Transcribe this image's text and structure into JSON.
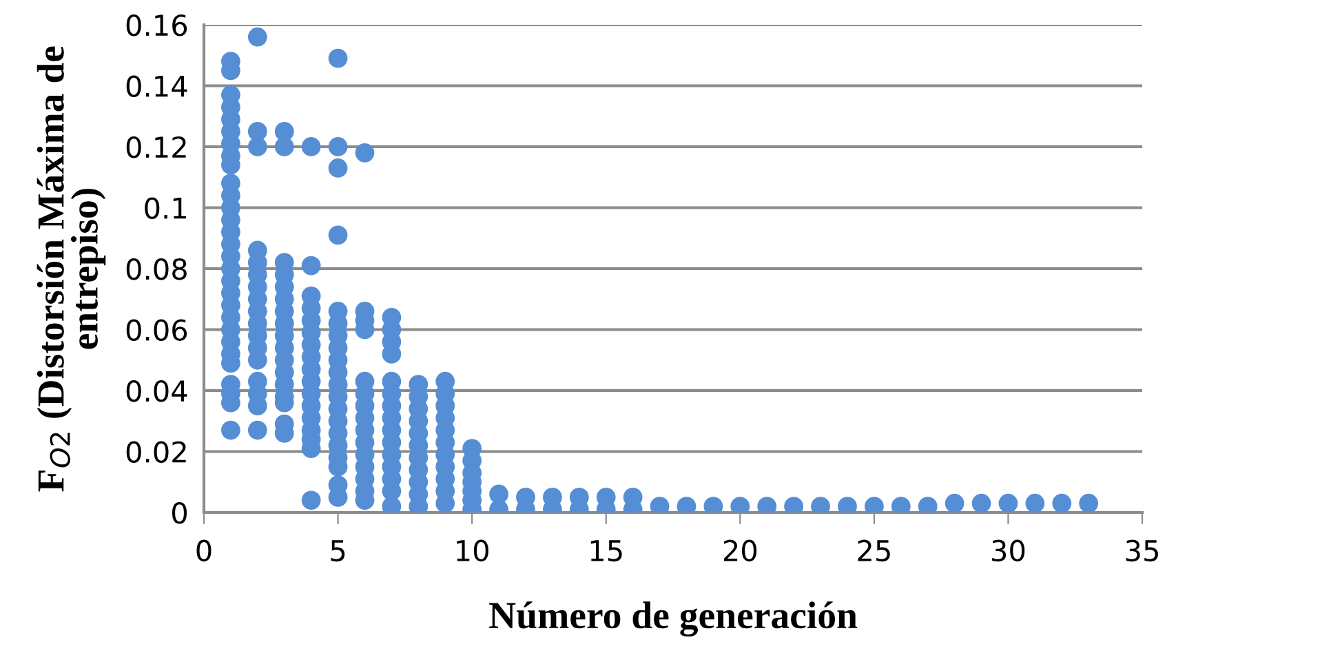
{
  "chart_data": {
    "type": "scatter",
    "xlabel": "Número de generación",
    "ylabel": "F$_{O2}$ (Distorsión Máxima de\nentrepiso)",
    "series": [
      {
        "color": "#558ed5",
        "x": [
          1,
          1,
          1,
          1,
          1,
          1,
          1,
          1,
          1,
          1,
          1,
          1,
          1,
          1,
          1,
          1,
          1,
          1,
          1,
          1,
          1,
          1,
          1,
          1,
          1,
          1,
          1,
          1,
          1,
          2,
          2,
          2,
          2,
          2,
          2,
          2,
          2,
          2,
          2,
          2,
          2,
          2,
          2,
          2,
          2,
          2,
          3,
          3,
          3,
          3,
          3,
          3,
          3,
          3,
          3,
          3,
          3,
          3,
          3,
          3,
          3,
          3,
          3,
          4,
          4,
          4,
          4,
          4,
          4,
          4,
          4,
          4,
          4,
          4,
          4,
          4,
          4,
          4,
          4,
          4,
          5,
          5,
          5,
          5,
          5,
          5,
          5,
          5,
          5,
          5,
          5,
          5,
          5,
          5,
          5,
          5,
          5,
          5,
          5,
          5,
          6,
          6,
          6,
          6,
          6,
          6,
          6,
          6,
          6,
          6,
          6,
          6,
          6,
          6,
          6,
          7,
          7,
          7,
          7,
          7,
          7,
          7,
          7,
          7,
          7,
          7,
          7,
          7,
          7,
          7,
          8,
          8,
          8,
          8,
          8,
          8,
          8,
          8,
          8,
          8,
          8,
          9,
          9,
          9,
          9,
          9,
          9,
          9,
          9,
          9,
          9,
          9,
          10,
          10,
          10,
          10,
          10,
          10,
          10,
          11,
          11,
          12,
          12,
          13,
          13,
          14,
          14,
          15,
          15,
          16,
          16,
          17,
          18,
          19,
          20,
          21,
          22,
          23,
          24,
          25,
          26,
          27,
          28,
          29,
          30,
          31,
          32,
          33
        ],
        "values": [
          0.148,
          0.145,
          0.137,
          0.133,
          0.129,
          0.125,
          0.121,
          0.117,
          0.114,
          0.108,
          0.104,
          0.1,
          0.096,
          0.092,
          0.088,
          0.084,
          0.08,
          0.076,
          0.072,
          0.068,
          0.064,
          0.06,
          0.056,
          0.052,
          0.049,
          0.042,
          0.039,
          0.036,
          0.027,
          0.156,
          0.125,
          0.12,
          0.086,
          0.082,
          0.078,
          0.074,
          0.07,
          0.066,
          0.062,
          0.058,
          0.054,
          0.05,
          0.043,
          0.039,
          0.035,
          0.027,
          0.125,
          0.12,
          0.082,
          0.078,
          0.074,
          0.07,
          0.066,
          0.062,
          0.058,
          0.054,
          0.05,
          0.046,
          0.042,
          0.038,
          0.036,
          0.029,
          0.026,
          0.12,
          0.081,
          0.071,
          0.067,
          0.063,
          0.059,
          0.055,
          0.051,
          0.047,
          0.043,
          0.039,
          0.035,
          0.031,
          0.027,
          0.024,
          0.021,
          0.004,
          0.149,
          0.12,
          0.113,
          0.091,
          0.066,
          0.062,
          0.058,
          0.054,
          0.05,
          0.046,
          0.042,
          0.038,
          0.034,
          0.03,
          0.026,
          0.022,
          0.018,
          0.015,
          0.009,
          0.005,
          0.118,
          0.066,
          0.063,
          0.06,
          0.043,
          0.039,
          0.035,
          0.031,
          0.027,
          0.023,
          0.019,
          0.015,
          0.011,
          0.007,
          0.004,
          0.064,
          0.06,
          0.056,
          0.052,
          0.043,
          0.039,
          0.035,
          0.031,
          0.027,
          0.023,
          0.019,
          0.015,
          0.011,
          0.007,
          0.002,
          0.042,
          0.038,
          0.034,
          0.03,
          0.026,
          0.022,
          0.018,
          0.014,
          0.01,
          0.006,
          0.002,
          0.043,
          0.039,
          0.035,
          0.031,
          0.027,
          0.023,
          0.019,
          0.015,
          0.011,
          0.007,
          0.003,
          0.021,
          0.017,
          0.013,
          0.01,
          0.007,
          0.004,
          0.001,
          0.006,
          0.001,
          0.005,
          0.001,
          0.005,
          0.001,
          0.005,
          0.001,
          0.005,
          0.001,
          0.005,
          0.001,
          0.002,
          0.002,
          0.002,
          0.002,
          0.002,
          0.002,
          0.002,
          0.002,
          0.002,
          0.002,
          0.002,
          0.003,
          0.003,
          0.003,
          0.003,
          0.003,
          0.003
        ]
      }
    ],
    "xlim": [
      0,
      35
    ],
    "xticks": [
      0,
      5,
      10,
      15,
      20,
      25,
      30,
      35
    ],
    "ylim": [
      0,
      0.16
    ],
    "yticks": [
      0,
      0.02,
      0.04,
      0.06,
      0.08,
      0.1,
      0.12,
      0.14,
      0.16
    ],
    "grid": "y",
    "marker": "circle"
  }
}
